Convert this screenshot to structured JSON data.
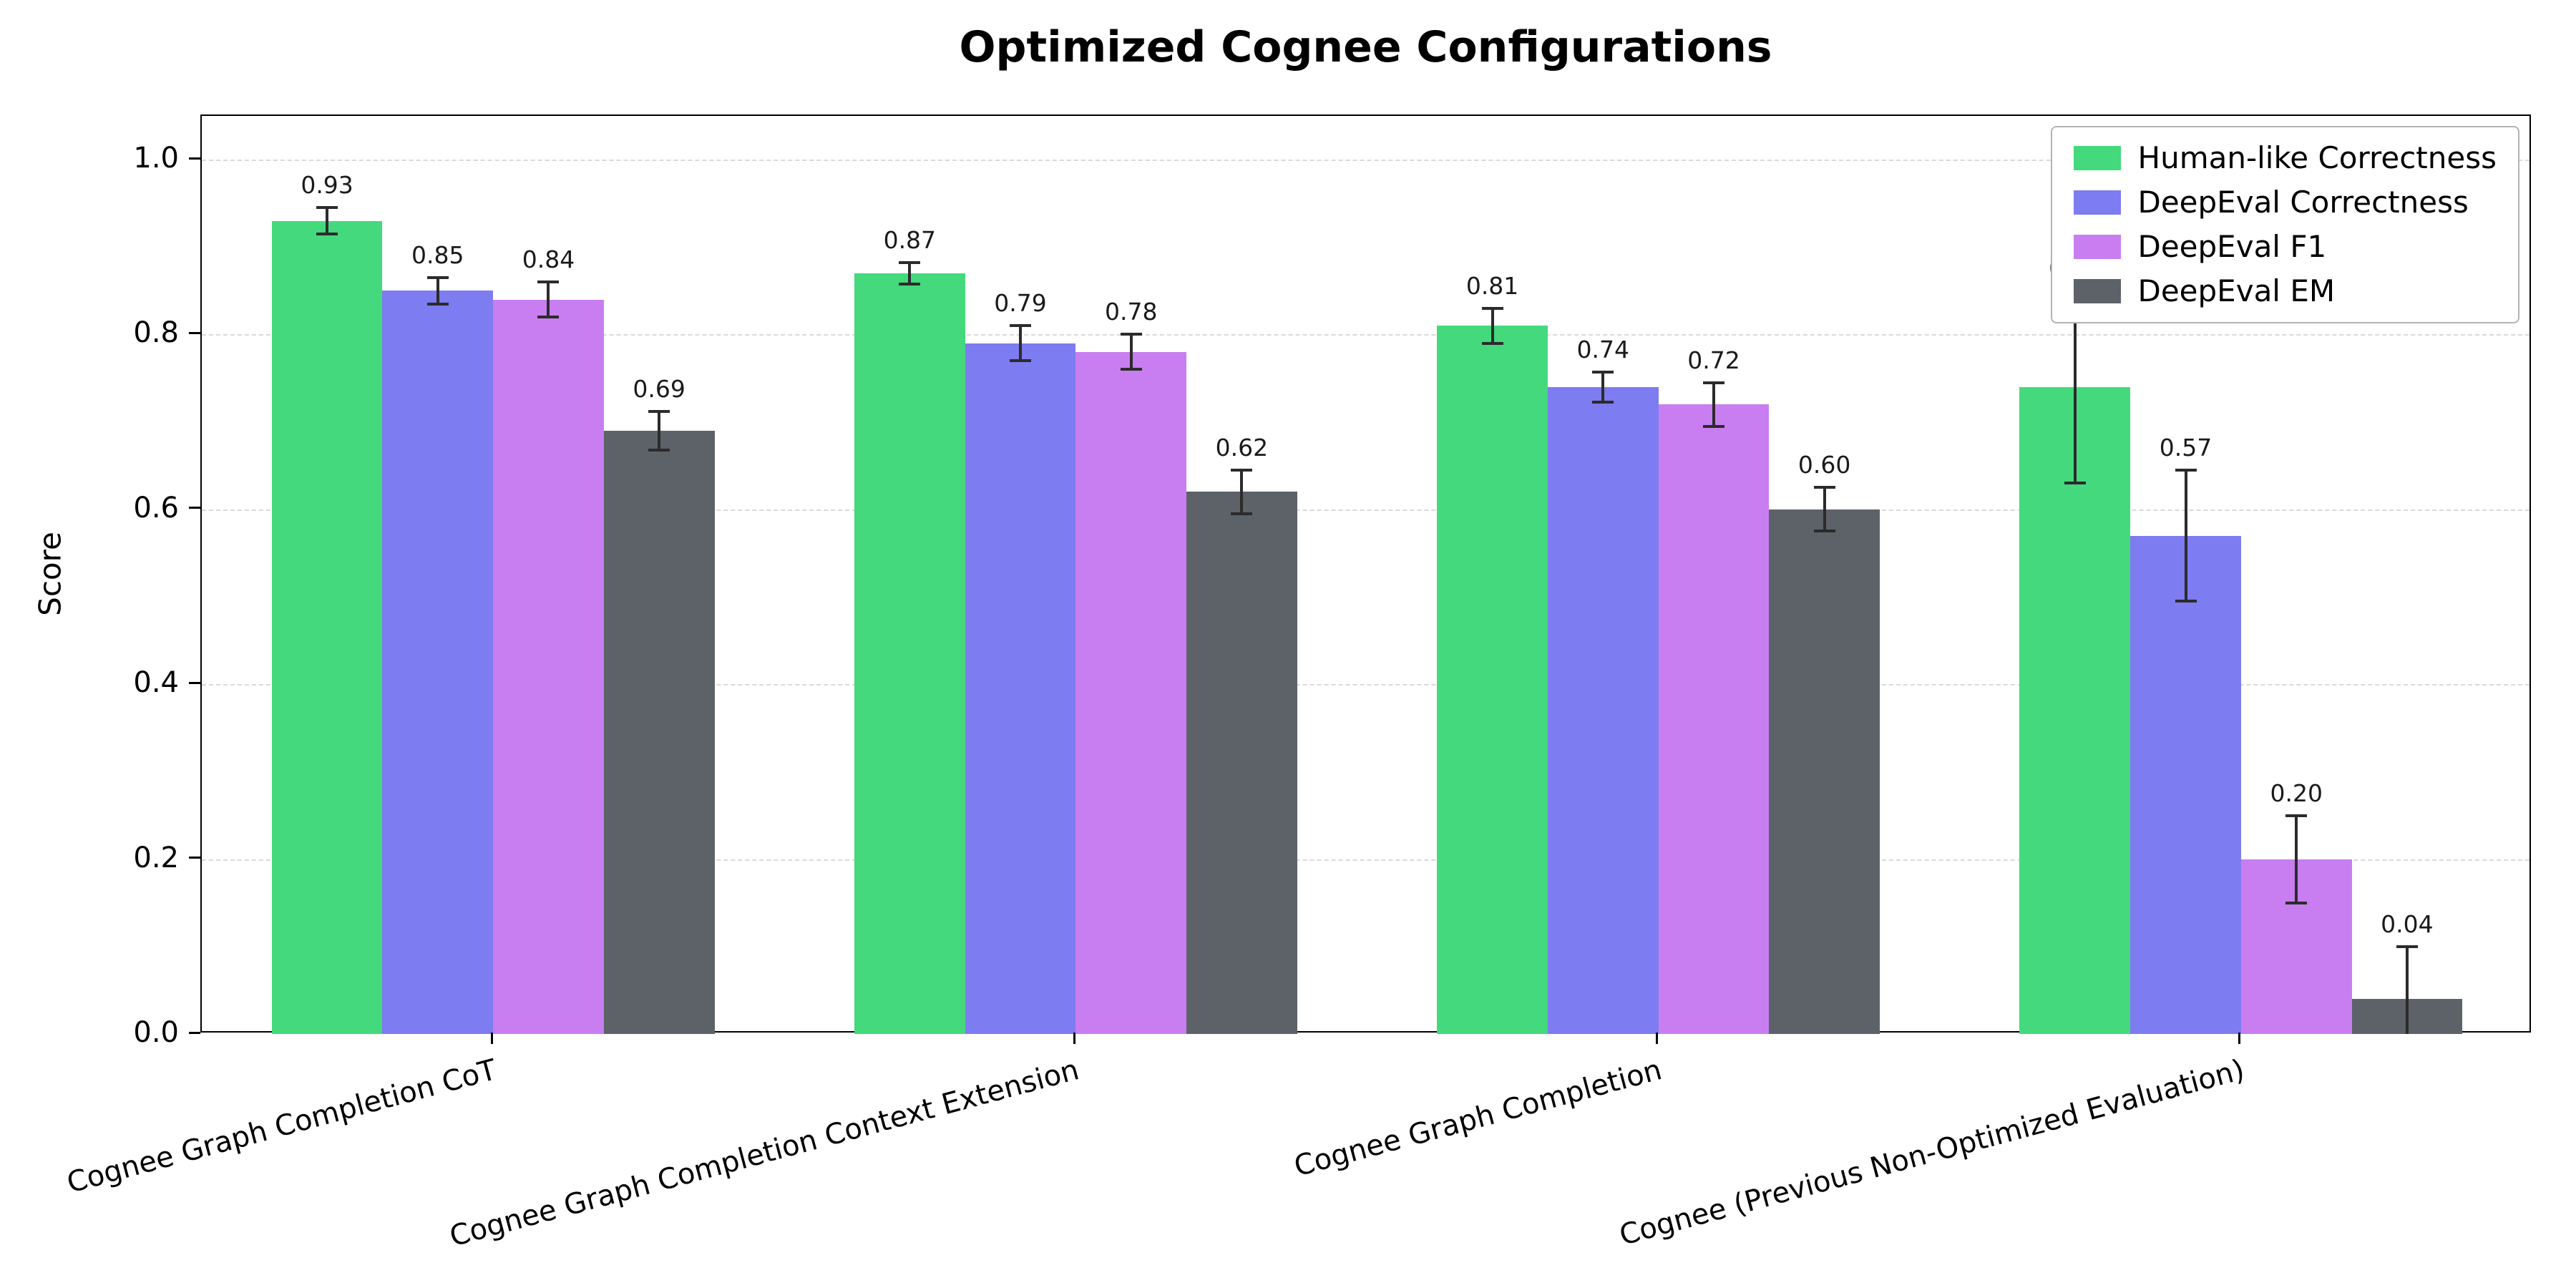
{
  "title": "Optimized Cognee Configurations",
  "chart_data": {
    "type": "bar",
    "title": "Optimized Cognee Configurations",
    "xlabel": "",
    "ylabel": "Score",
    "ylim": [
      0,
      1.05
    ],
    "yticks": [
      0.0,
      0.2,
      0.4,
      0.6,
      0.8,
      1.0
    ],
    "ytick_labels": [
      "0.0",
      "0.2",
      "0.4",
      "0.6",
      "0.8",
      "1.0"
    ],
    "grid": "horizontal-dashed",
    "legend_position": "upper-right",
    "categories": [
      "Cognee Graph Completion CoT",
      "Cognee Graph Completion Context Extension",
      "Cognee Graph Completion",
      "Cognee (Previous Non-Optimized Evaluation)"
    ],
    "series": [
      {
        "name": "Human-like Correctness",
        "color": "#44d97d",
        "values": [
          0.93,
          0.87,
          0.81,
          0.74
        ],
        "errors": [
          0.015,
          0.012,
          0.02,
          0.11
        ]
      },
      {
        "name": "DeepEval Correctness",
        "color": "#7d7cf0",
        "values": [
          0.85,
          0.79,
          0.74,
          0.57
        ],
        "errors": [
          0.015,
          0.02,
          0.017,
          0.075
        ]
      },
      {
        "name": "DeepEval F1",
        "color": "#c87ef0",
        "values": [
          0.84,
          0.78,
          0.72,
          0.2
        ],
        "errors": [
          0.02,
          0.02,
          0.025,
          0.05
        ]
      },
      {
        "name": "DeepEval EM",
        "color": "#5d6269",
        "values": [
          0.69,
          0.62,
          0.6,
          0.04
        ],
        "errors": [
          0.022,
          0.025,
          0.025,
          0.06
        ]
      }
    ],
    "bar_value_labels": [
      [
        "0.93",
        "0.87",
        "0.81",
        "0.74"
      ],
      [
        "0.85",
        "0.79",
        "0.74",
        "0.57"
      ],
      [
        "0.84",
        "0.78",
        "0.72",
        "0.20"
      ],
      [
        "0.69",
        "0.62",
        "0.60",
        "0.04"
      ]
    ],
    "error_bar_color": "#2b2b2b"
  }
}
